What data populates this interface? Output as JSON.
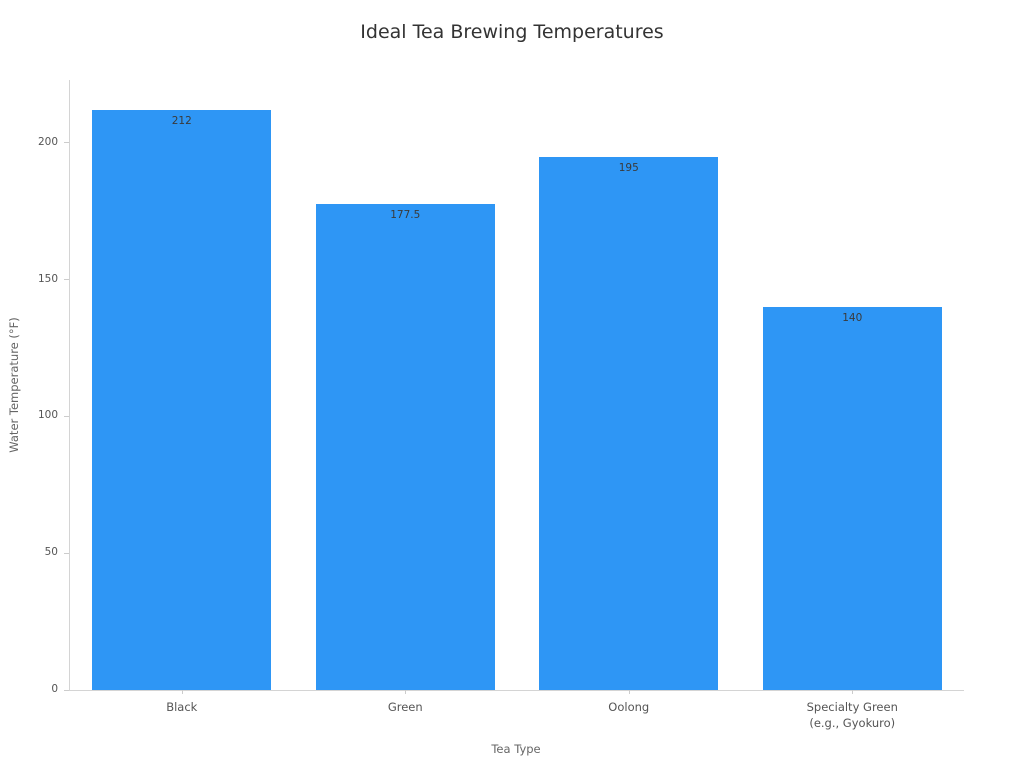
{
  "chart_data": {
    "type": "bar",
    "title": "Ideal Tea Brewing Temperatures",
    "xlabel": "Tea Type",
    "ylabel": "Water Temperature (°F)",
    "categories": [
      "Black",
      "Green",
      "Oolong",
      "Specialty Green\n(e.g., Gyokuro)"
    ],
    "values": [
      212,
      177.5,
      195,
      140
    ],
    "value_labels": [
      "212",
      "177.5",
      "195",
      "140"
    ],
    "yticks": [
      0,
      50,
      100,
      150,
      200
    ],
    "ylim": [
      0,
      223
    ],
    "grid": false,
    "legend": null,
    "bar_color": "#2e96f5",
    "colors": {
      "bar": "#2e96f5",
      "title_text": "#333333",
      "tick_text": "#555555",
      "axis_title_text": "#666666",
      "value_label_text": "#3a3a3a",
      "spine": "#d4d4d4"
    }
  }
}
